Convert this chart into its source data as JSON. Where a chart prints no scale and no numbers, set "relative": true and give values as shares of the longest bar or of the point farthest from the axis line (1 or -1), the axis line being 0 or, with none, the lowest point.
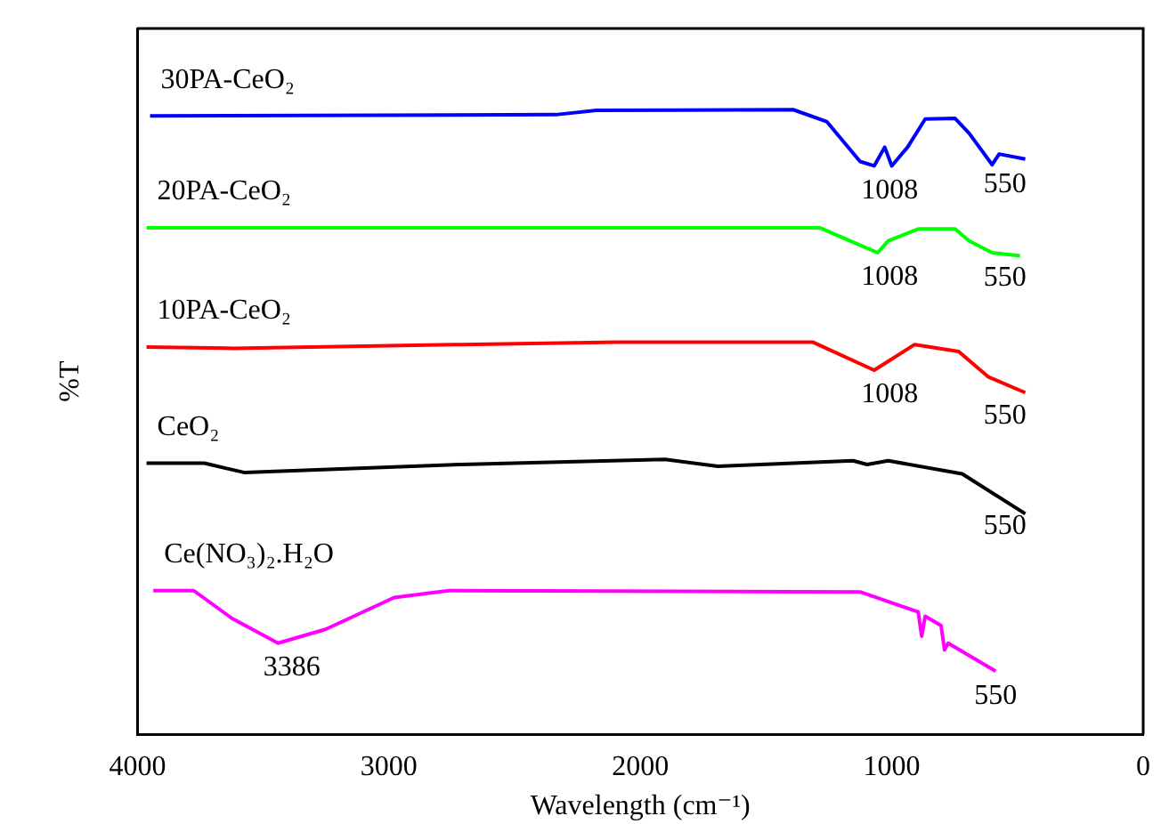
{
  "chart_data": {
    "type": "line",
    "xlabel": "Wavelength (cm⁻¹)",
    "ylabel": "%T",
    "relative": true,
    "xlim": [
      4000,
      0
    ],
    "xticks": [
      4000,
      3000,
      2000,
      1000,
      0
    ],
    "grid": false,
    "legend": false,
    "marker": "none",
    "line_style": "solid",
    "series": [
      {
        "name": "30PA-CeO₂",
        "color": "#0000ff",
        "x": [
          3950,
          2336,
          2175,
          1392,
          1259,
          1126,
          1070,
          1028,
          1000,
          937,
          867,
          748,
          692,
          601,
          573,
          469
        ],
        "values": [
          0.99,
          0.992,
          0.999,
          1,
          0.981,
          0.917,
          0.91,
          0.94,
          0.91,
          0.94,
          0.985,
          0.986,
          0.962,
          0.912,
          0.929,
          0.921
        ]
      },
      {
        "name": "20PA-CeO₂",
        "color": "#00ff00",
        "x": [
          3964,
          1287,
          1154,
          1056,
          1014,
          895,
          748,
          692,
          601,
          490
        ],
        "values": [
          0.811,
          0.811,
          0.788,
          0.771,
          0.79,
          0.809,
          0.809,
          0.79,
          0.771,
          0.766
        ]
      },
      {
        "name": "10PA-CeO₂",
        "color": "#ff0000",
        "x": [
          3964,
          3622,
          2713,
          2091,
          1315,
          1070,
          909,
          734,
          615,
          469
        ],
        "values": [
          0.62,
          0.618,
          0.624,
          0.628,
          0.628,
          0.583,
          0.624,
          0.613,
          0.572,
          0.547
        ]
      },
      {
        "name": "CeO₂",
        "color": "#000000",
        "x": [
          3964,
          3734,
          3573,
          2713,
          1902,
          1692,
          1154,
          1098,
          1014,
          720,
          469
        ],
        "values": [
          0.434,
          0.434,
          0.419,
          0.432,
          0.44,
          0.429,
          0.438,
          0.432,
          0.438,
          0.417,
          0.353
        ]
      },
      {
        "name": "Ce(NO₃)₂.H₂O",
        "color": "#ff00ff",
        "x": [
          3937,
          3776,
          3622,
          3441,
          3252,
          2979,
          2762,
          1126,
          895,
          881,
          867,
          804,
          790,
          776,
          587
        ],
        "values": [
          0.23,
          0.23,
          0.185,
          0.146,
          0.168,
          0.219,
          0.23,
          0.228,
          0.196,
          0.157,
          0.189,
          0.174,
          0.135,
          0.146,
          0.101
        ]
      }
    ],
    "annotations": [
      {
        "text": "1008",
        "x": 1008,
        "y": 0.91
      },
      {
        "text": "550",
        "x": 550,
        "y": 0.92
      },
      {
        "text": "1008",
        "x": 1008,
        "y": 0.771
      },
      {
        "text": "550",
        "x": 550,
        "y": 0.77
      },
      {
        "text": "1008",
        "x": 1008,
        "y": 0.583
      },
      {
        "text": "550",
        "x": 550,
        "y": 0.55
      },
      {
        "text": "550",
        "x": 550,
        "y": 0.373
      },
      {
        "text": "3386",
        "x": 3386,
        "y": 0.146
      },
      {
        "text": "550",
        "x": 587,
        "y": 0.101
      }
    ]
  }
}
